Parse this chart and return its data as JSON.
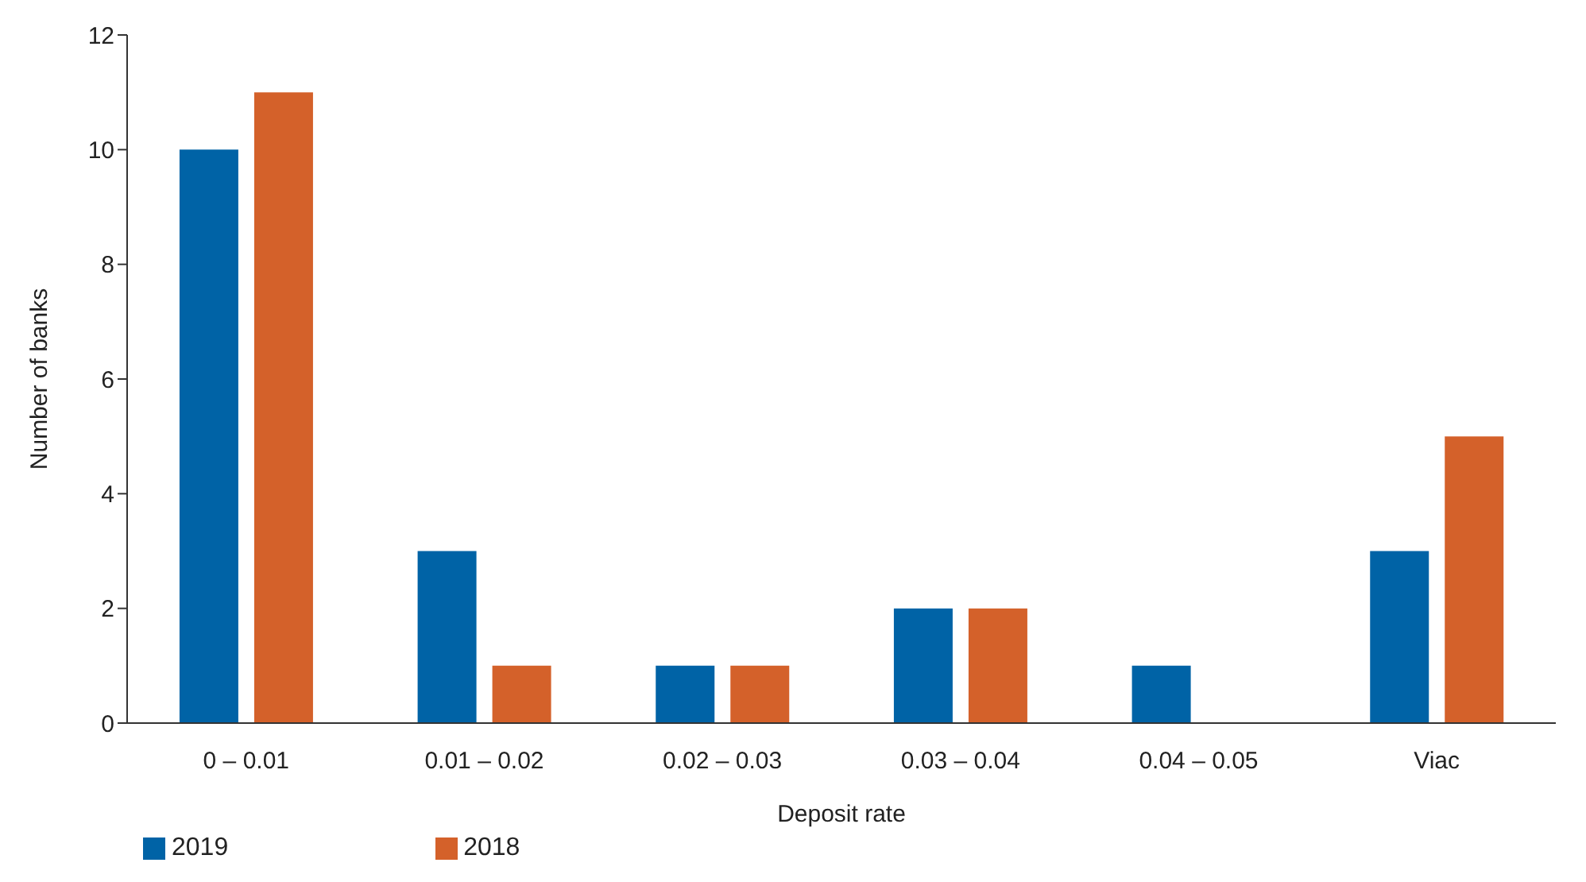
{
  "chart_data": {
    "type": "bar",
    "xlabel": "Deposit rate",
    "ylabel": "Number of banks",
    "categories": [
      "0 – 0.01",
      "0.01 – 0.02",
      "0.02 – 0.03",
      "0.03 – 0.04",
      "0.04 – 0.05",
      "Viac"
    ],
    "series": [
      {
        "name": "2019",
        "color": "#0063a6",
        "values": [
          10,
          3,
          1,
          2,
          1,
          3
        ]
      },
      {
        "name": "2018",
        "color": "#d4612a",
        "values": [
          11,
          1,
          1,
          2,
          0,
          5
        ]
      }
    ],
    "ylim": [
      0,
      12
    ],
    "yticks": [
      0,
      2,
      4,
      6,
      8,
      10,
      12
    ],
    "grid": false,
    "legend": "bottom left"
  }
}
